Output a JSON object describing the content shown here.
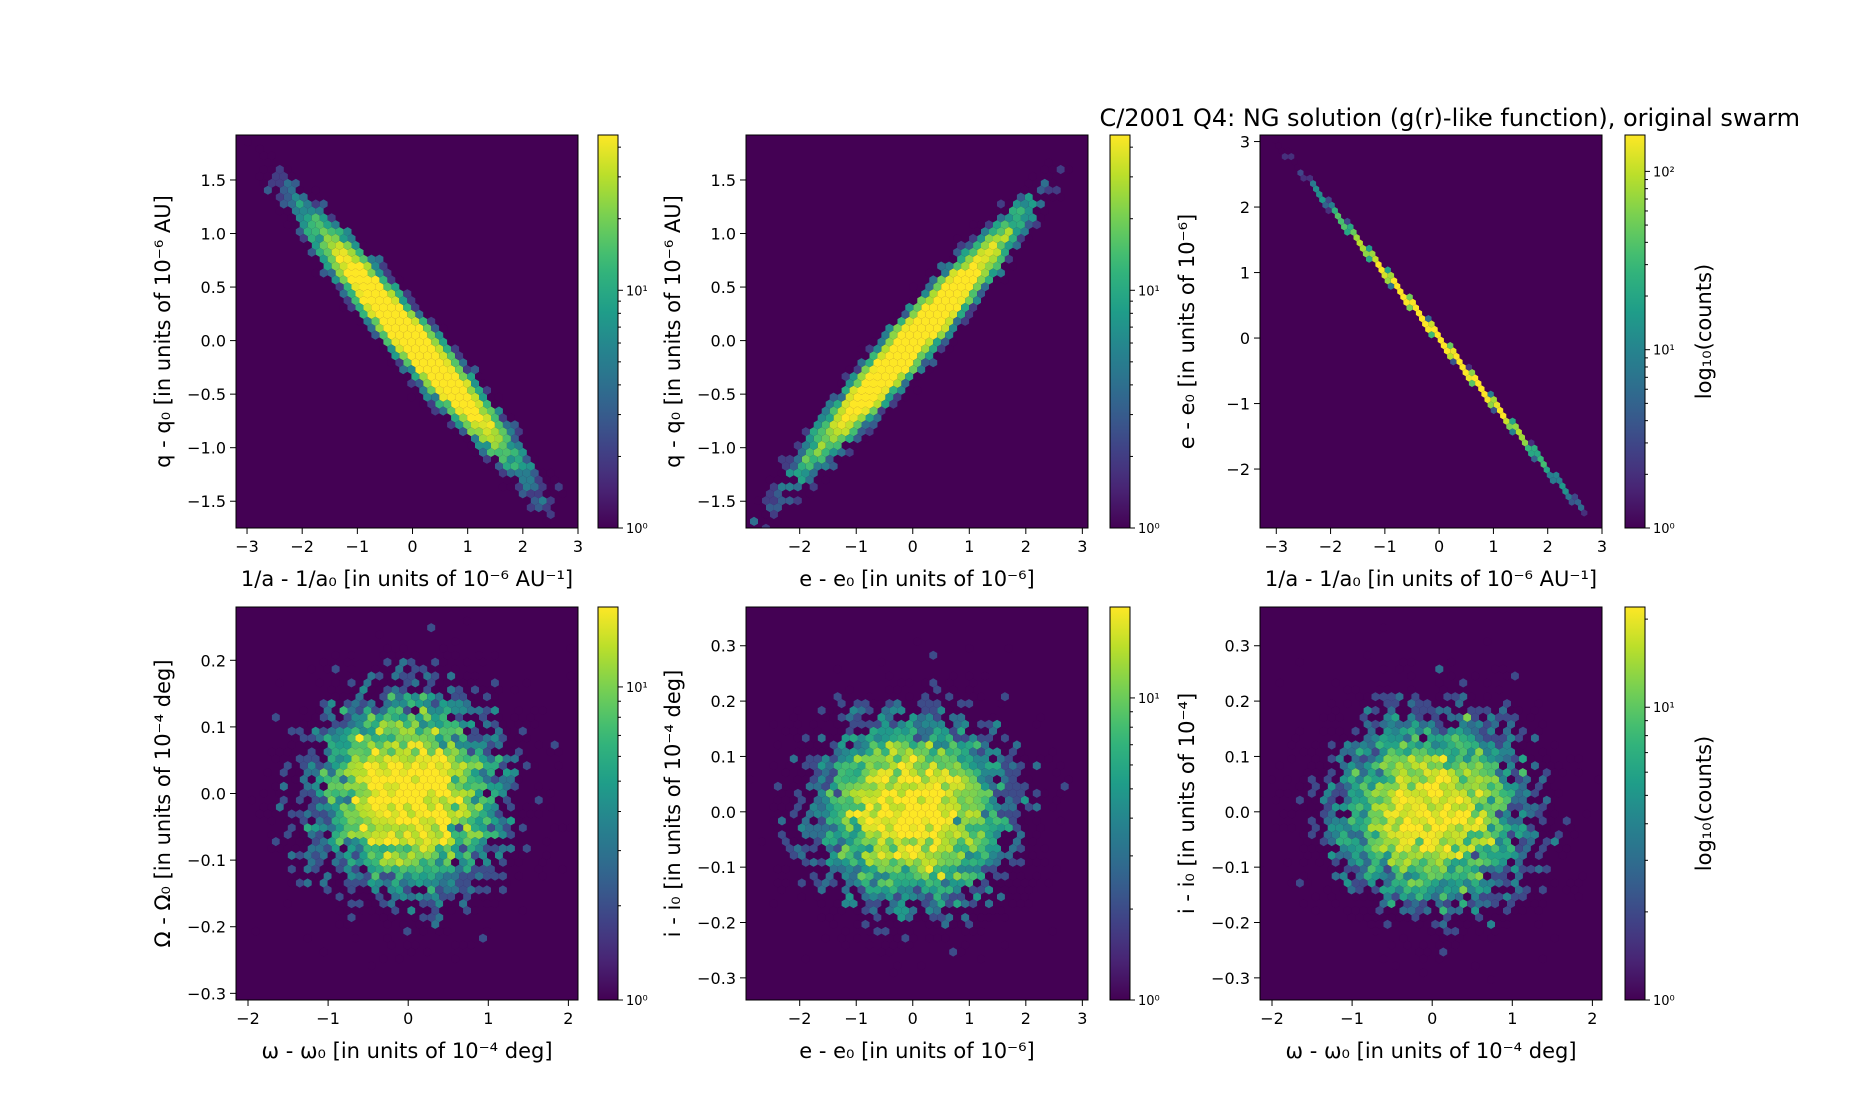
{
  "figure": {
    "title": "C/2001 Q4:  NG solution (g(r)-like function), original swarm"
  },
  "colormap": [
    "#440154",
    "#482878",
    "#3e4989",
    "#31688e",
    "#26828e",
    "#1f9e89",
    "#35b779",
    "#6ece58",
    "#b5de2b",
    "#fde725"
  ],
  "chart_data": [
    {
      "type": "heatmap",
      "subtype": "hexbin-log-counts",
      "xlabel": "1/a - 1/a₀ [in units of 10⁻⁶ AU⁻¹]",
      "ylabel": "q - q₀ [in units of 10⁻⁶ AU]",
      "xlim": [
        -3.2,
        3.0
      ],
      "ylim": [
        -1.75,
        1.92
      ],
      "xticks": [
        -3,
        -2,
        -1,
        0,
        1,
        2,
        3
      ],
      "yticks": [
        -1.5,
        -1.0,
        -0.5,
        0.0,
        0.5,
        1.0,
        1.5
      ],
      "xtick_labels": [
        "−3",
        "−2",
        "−1",
        "0",
        "1",
        "2",
        "3"
      ],
      "ytick_labels": [
        "−1.5",
        "−1.0",
        "−0.5",
        "0.0",
        "0.5",
        "1.0",
        "1.5"
      ],
      "distribution": {
        "shape": "correlated-gaussian",
        "center": [
          0,
          0
        ],
        "sigma": [
          0.85,
          0.52
        ],
        "correlation": -0.97,
        "samples": 10000
      },
      "colorbar": {
        "scale": "log",
        "range": [
          1,
          45
        ],
        "ticks": [
          1,
          10
        ],
        "tick_labels": [
          "10⁰",
          "10¹"
        ],
        "label": ""
      }
    },
    {
      "type": "heatmap",
      "subtype": "hexbin-log-counts",
      "xlabel": "e - e₀ [in units of 10⁻⁶]",
      "ylabel": "q - q₀ [in units of 10⁻⁶ AU]",
      "xlim": [
        -2.95,
        3.1
      ],
      "ylim": [
        -1.75,
        1.92
      ],
      "xticks": [
        -2,
        -1,
        0,
        1,
        2,
        3
      ],
      "yticks": [
        -1.5,
        -1.0,
        -0.5,
        0.0,
        0.5,
        1.0,
        1.5
      ],
      "xtick_labels": [
        "−2",
        "−1",
        "0",
        "1",
        "2",
        "3"
      ],
      "ytick_labels": [
        "−1.5",
        "−1.0",
        "−0.5",
        "0.0",
        "0.5",
        "1.0",
        "1.5"
      ],
      "distribution": {
        "shape": "correlated-gaussian",
        "center": [
          0,
          0
        ],
        "sigma": [
          0.85,
          0.52
        ],
        "correlation": 0.97,
        "samples": 10000
      },
      "colorbar": {
        "scale": "log",
        "range": [
          1,
          45
        ],
        "ticks": [
          1,
          10
        ],
        "tick_labels": [
          "10⁰",
          "10¹"
        ],
        "label": ""
      }
    },
    {
      "type": "heatmap",
      "subtype": "hexbin-log-counts",
      "xlabel": "1/a - 1/a₀ [in units of 10⁻⁶ AU⁻¹]",
      "ylabel": "e - e₀ [in units of 10⁻⁶]",
      "xlim": [
        -3.3,
        3.0
      ],
      "ylim": [
        -2.9,
        3.1
      ],
      "xticks": [
        -3,
        -2,
        -1,
        0,
        1,
        2,
        3
      ],
      "yticks": [
        -2,
        -1,
        0,
        1,
        2,
        3
      ],
      "xtick_labels": [
        "−3",
        "−2",
        "−1",
        "0",
        "1",
        "2",
        "3"
      ],
      "ytick_labels": [
        "−2",
        "−1",
        "0",
        "1",
        "2",
        "3"
      ],
      "distribution": {
        "shape": "line",
        "slope": -1.0,
        "center": [
          0,
          0
        ],
        "sigma": 0.85,
        "samples": 10000
      },
      "colorbar": {
        "scale": "log",
        "range": [
          1,
          160
        ],
        "ticks": [
          1,
          10,
          100
        ],
        "tick_labels": [
          "10⁰",
          "10¹",
          "10²"
        ],
        "label": "log₁₀(counts)"
      }
    },
    {
      "type": "heatmap",
      "subtype": "hexbin-log-counts",
      "xlabel": "ω - ω₀ [in units of 10⁻⁴ deg]",
      "ylabel": "Ω - Ω₀ [in units of 10⁻⁴ deg]",
      "xlim": [
        -2.15,
        2.12
      ],
      "ylim": [
        -0.31,
        0.28
      ],
      "xticks": [
        -2,
        -1,
        0,
        1,
        2
      ],
      "yticks": [
        -0.3,
        -0.2,
        -0.1,
        0.0,
        0.1,
        0.2
      ],
      "xtick_labels": [
        "−2",
        "−1",
        "0",
        "1",
        "2"
      ],
      "ytick_labels": [
        "−0.3",
        "−0.2",
        "−0.1",
        "0.0",
        "0.1",
        "0.2"
      ],
      "distribution": {
        "shape": "gaussian",
        "center": [
          0,
          0
        ],
        "sigma": [
          0.6,
          0.075
        ],
        "correlation": 0.0,
        "samples": 6000
      },
      "colorbar": {
        "scale": "log",
        "range": [
          1,
          18
        ],
        "ticks": [
          1,
          10
        ],
        "tick_labels": [
          "10⁰",
          "10¹"
        ],
        "label": ""
      }
    },
    {
      "type": "heatmap",
      "subtype": "hexbin-log-counts",
      "xlabel": "e - e₀ [in units of 10⁻⁶]",
      "ylabel": "i - i₀ [in units of 10⁻⁴ deg]",
      "xlim": [
        -2.95,
        3.1
      ],
      "ylim": [
        -0.34,
        0.37
      ],
      "xticks": [
        -2,
        -1,
        0,
        1,
        2,
        3
      ],
      "yticks": [
        -0.3,
        -0.2,
        -0.1,
        0.0,
        0.1,
        0.2,
        0.3
      ],
      "xtick_labels": [
        "−2",
        "−1",
        "0",
        "1",
        "2",
        "3"
      ],
      "ytick_labels": [
        "−0.3",
        "−0.2",
        "−0.1",
        "0.0",
        "0.1",
        "0.2",
        "0.3"
      ],
      "distribution": {
        "shape": "gaussian",
        "center": [
          0,
          0
        ],
        "sigma": [
          0.85,
          0.085
        ],
        "correlation": 0.0,
        "samples": 6000
      },
      "colorbar": {
        "scale": "log",
        "range": [
          1,
          20
        ],
        "ticks": [
          1,
          10
        ],
        "tick_labels": [
          "10⁰",
          "10¹"
        ],
        "label": ""
      }
    },
    {
      "type": "heatmap",
      "subtype": "hexbin-log-counts",
      "xlabel": "ω - ω₀ [in units of 10⁻⁴ deg]",
      "ylabel": "i - i₀ [in units of 10⁻⁴]",
      "xlim": [
        -2.15,
        2.12
      ],
      "ylim": [
        -0.34,
        0.37
      ],
      "xticks": [
        -2,
        -1,
        0,
        1,
        2
      ],
      "yticks": [
        -0.3,
        -0.2,
        -0.1,
        0.0,
        0.1,
        0.2,
        0.3
      ],
      "xtick_labels": [
        "−2",
        "−1",
        "0",
        "1",
        "2"
      ],
      "ytick_labels": [
        "−0.3",
        "−0.2",
        "−0.1",
        "0.0",
        "0.1",
        "0.2",
        "0.3"
      ],
      "distribution": {
        "shape": "gaussian",
        "center": [
          0,
          0
        ],
        "sigma": [
          0.6,
          0.085
        ],
        "correlation": 0.0,
        "samples": 6000
      },
      "colorbar": {
        "scale": "log",
        "range": [
          1,
          22
        ],
        "ticks": [
          1,
          10
        ],
        "tick_labels": [
          "10⁰",
          "10¹"
        ],
        "label": "log₁₀(counts)"
      }
    }
  ]
}
